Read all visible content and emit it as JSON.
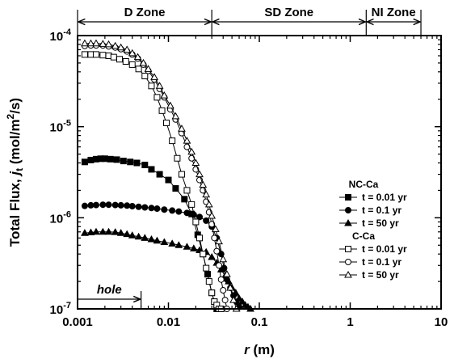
{
  "chart_data": {
    "type": "scatter",
    "x_scale": "log",
    "y_scale": "log",
    "xlim": [
      0.001,
      10
    ],
    "ylim": [
      1e-07,
      0.0001
    ],
    "x_ticks": [
      {
        "v": 0.001,
        "label": "0.001"
      },
      {
        "v": 0.01,
        "label": "0.01"
      },
      {
        "v": 0.1,
        "label": "0.1"
      },
      {
        "v": 1,
        "label": "1"
      },
      {
        "v": 10,
        "label": "10"
      }
    ],
    "y_ticks": [
      {
        "v": 0.0001,
        "base": "10",
        "exp": "-4"
      },
      {
        "v": 1e-05,
        "base": "10",
        "exp": "-5"
      },
      {
        "v": 1e-06,
        "base": "10",
        "exp": "-6"
      },
      {
        "v": 1e-07,
        "base": "10",
        "exp": "-7"
      }
    ],
    "xlabel_italic": "r",
    "xlabel_rest": " (m)",
    "ylabel_pre": "Total Flux, ",
    "ylabel_italic": "j",
    "ylabel_sub": "t",
    "ylabel_post": " (mol/m",
    "ylabel_sup": "2",
    "ylabel_end": "/s)",
    "zones": [
      {
        "label": "D Zone",
        "from": 0.001,
        "to": 0.03
      },
      {
        "label": "SD Zone",
        "from": 0.03,
        "to": 1.5
      },
      {
        "label": "NI Zone",
        "from": 1.5,
        "to": 6
      }
    ],
    "annotation": {
      "text": "hole",
      "from": 0.001,
      "to": 0.005
    },
    "legend": {
      "placement": "right-middle",
      "groups": [
        {
          "title": "NC-Ca",
          "entries": [
            {
              "series": 0,
              "label": "t = 0.01 yr"
            },
            {
              "series": 1,
              "label": "t = 0.1 yr"
            },
            {
              "series": 2,
              "label": "t = 50 yr"
            }
          ]
        },
        {
          "title": "C-Ca",
          "entries": [
            {
              "series": 3,
              "label": "t = 0.01 yr"
            },
            {
              "series": 4,
              "label": "t = 0.1 yr"
            },
            {
              "series": 5,
              "label": "t = 50 yr"
            }
          ]
        }
      ]
    },
    "series": [
      {
        "marker": "square",
        "filled": true,
        "x": [
          0.0012,
          0.0014,
          0.0016,
          0.0018,
          0.002,
          0.0023,
          0.0027,
          0.0032,
          0.0038,
          0.0045,
          0.0055,
          0.0065,
          0.008,
          0.01,
          0.012,
          0.015,
          0.018,
          0.021,
          0.024,
          0.027,
          0.03,
          0.032,
          0.034
        ],
        "y": [
          4.1e-06,
          4.3e-06,
          4.4e-06,
          4.45e-06,
          4.45e-06,
          4.4e-06,
          4.35e-06,
          4.2e-06,
          4.1e-06,
          4e-06,
          3.8e-06,
          3.4e-06,
          3e-06,
          2.6e-06,
          2.1e-06,
          1.6e-06,
          1.1e-06,
          6.5e-07,
          4e-07,
          2.4e-07,
          1.5e-07,
          1.2e-07,
          1e-07
        ]
      },
      {
        "marker": "circle",
        "filled": true,
        "x": [
          0.0012,
          0.0014,
          0.0016,
          0.0019,
          0.0022,
          0.0026,
          0.003,
          0.0035,
          0.004,
          0.0047,
          0.0055,
          0.0065,
          0.0075,
          0.009,
          0.011,
          0.013,
          0.016,
          0.019,
          0.022,
          0.026,
          0.03,
          0.034,
          0.038,
          0.041,
          0.044,
          0.048,
          0.052,
          0.056,
          0.06
        ],
        "y": [
          1.35e-06,
          1.37e-06,
          1.38e-06,
          1.39e-06,
          1.39e-06,
          1.38e-06,
          1.37e-06,
          1.36e-06,
          1.34e-06,
          1.32e-06,
          1.3e-06,
          1.28e-06,
          1.26e-06,
          1.23e-06,
          1.2e-06,
          1.17e-06,
          1.13e-06,
          1.08e-06,
          1.02e-06,
          9.3e-07,
          8e-07,
          6e-07,
          4e-07,
          2.8e-07,
          2.1e-07,
          1.7e-07,
          1.4e-07,
          1.2e-07,
          1.05e-07
        ]
      },
      {
        "marker": "triangle",
        "filled": true,
        "x": [
          0.0012,
          0.0014,
          0.0016,
          0.0019,
          0.0022,
          0.0026,
          0.003,
          0.0035,
          0.004,
          0.0047,
          0.0055,
          0.0065,
          0.0075,
          0.009,
          0.011,
          0.013,
          0.016,
          0.019,
          0.022,
          0.026,
          0.03,
          0.034,
          0.038,
          0.042,
          0.046,
          0.05,
          0.055,
          0.06,
          0.065,
          0.07,
          0.075,
          0.08
        ],
        "y": [
          6.8e-07,
          6.9e-07,
          7e-07,
          7e-07,
          7e-07,
          6.95e-07,
          6.8e-07,
          6.6e-07,
          6.4e-07,
          6.2e-07,
          6e-07,
          5.8e-07,
          5.6e-07,
          5.4e-07,
          5.2e-07,
          5e-07,
          4.8e-07,
          4.6e-07,
          4.4e-07,
          4.2e-07,
          3.7e-07,
          3.2e-07,
          2.7e-07,
          2.3e-07,
          2e-07,
          1.7e-07,
          1.5e-07,
          1.3e-07,
          1.2e-07,
          1.1e-07,
          1.05e-07,
          1e-07
        ]
      },
      {
        "marker": "square",
        "filled": false,
        "x": [
          0.0012,
          0.0014,
          0.0016,
          0.0019,
          0.0022,
          0.0025,
          0.0029,
          0.0034,
          0.004,
          0.0047,
          0.0055,
          0.0065,
          0.0075,
          0.0085,
          0.0095,
          0.011,
          0.0125,
          0.014,
          0.016,
          0.018,
          0.02,
          0.022,
          0.024,
          0.026,
          0.028,
          0.03,
          0.032,
          0.034,
          0.036,
          0.038
        ],
        "y": [
          6.2e-05,
          6.2e-05,
          6.2e-05,
          6.1e-05,
          6e-05,
          5.8e-05,
          5.5e-05,
          5.2e-05,
          4.8e-05,
          4.3e-05,
          3.6e-05,
          2.8e-05,
          2.1e-05,
          1.5e-05,
          1.1e-05,
          7e-06,
          4.5e-06,
          3e-06,
          2e-06,
          1.4e-06,
          9e-07,
          6e-07,
          4e-07,
          2.8e-07,
          2e-07,
          1.5e-07,
          1.2e-07,
          1.1e-07,
          1e-07,
          1e-07
        ]
      },
      {
        "marker": "circle",
        "filled": false,
        "x": [
          0.0012,
          0.0014,
          0.0016,
          0.0019,
          0.0022,
          0.0026,
          0.003,
          0.0035,
          0.004,
          0.0046,
          0.0053,
          0.006,
          0.007,
          0.008,
          0.009,
          0.0105,
          0.012,
          0.014,
          0.016,
          0.018,
          0.02,
          0.022,
          0.024,
          0.026,
          0.028,
          0.03,
          0.032,
          0.034,
          0.036,
          0.038,
          0.04,
          0.042,
          0.044
        ],
        "y": [
          7.7e-05,
          7.8e-05,
          7.8e-05,
          7.8e-05,
          7.6e-05,
          7.4e-05,
          7.1e-05,
          6.7e-05,
          6.2e-05,
          5.6e-05,
          4.8e-05,
          4.1e-05,
          3.3e-05,
          2.6e-05,
          2.1e-05,
          1.55e-05,
          1.2e-05,
          8.5e-06,
          6e-06,
          4.5e-06,
          3.4e-06,
          2.6e-06,
          2e-06,
          1.5e-06,
          1.15e-06,
          8.5e-07,
          6e-07,
          4.3e-07,
          3e-07,
          2.1e-07,
          1.6e-07,
          1.25e-07,
          1e-07
        ]
      },
      {
        "marker": "triangle",
        "filled": false,
        "x": [
          0.0012,
          0.0014,
          0.0016,
          0.0019,
          0.0022,
          0.0026,
          0.003,
          0.0035,
          0.004,
          0.0046,
          0.0053,
          0.006,
          0.007,
          0.008,
          0.009,
          0.0105,
          0.012,
          0.014,
          0.016,
          0.018,
          0.02,
          0.022,
          0.024,
          0.026,
          0.028,
          0.03,
          0.033,
          0.036,
          0.04,
          0.044,
          0.048,
          0.052,
          0.056
        ],
        "y": [
          8.2e-05,
          8.2e-05,
          8.2e-05,
          8.1e-05,
          8e-05,
          7.7e-05,
          7.4e-05,
          7e-05,
          6.4e-05,
          5.8e-05,
          5e-05,
          4.3e-05,
          3.5e-05,
          2.8e-05,
          2.2e-05,
          1.7e-05,
          1.3e-05,
          9.5e-06,
          7e-06,
          5.3e-06,
          4e-06,
          3e-06,
          2.3e-06,
          1.8e-06,
          1.4e-06,
          1.05e-06,
          7.5e-07,
          5.5e-07,
          3.5e-07,
          2.4e-07,
          1.7e-07,
          1.25e-07,
          1e-07
        ]
      }
    ]
  }
}
